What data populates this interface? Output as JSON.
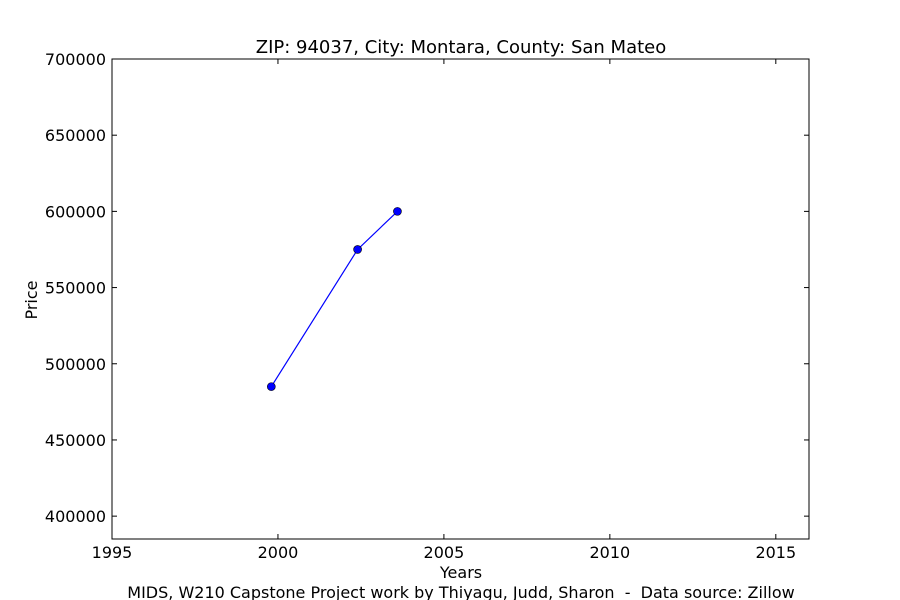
{
  "chart_data": {
    "type": "line",
    "title": "ZIP: 94037, City: Montara, County: San Mateo",
    "xlabel": "Years",
    "ylabel": "Price",
    "caption": "MIDS, W210 Capstone Project work by Thiyagu, Judd, Sharon  -  Data source: Zillow",
    "xlim": [
      1995,
      2016
    ],
    "ylim": [
      385000,
      700000
    ],
    "xticks": [
      1995,
      2000,
      2005,
      2010,
      2015
    ],
    "yticks": [
      400000,
      450000,
      500000,
      550000,
      600000,
      650000,
      700000
    ],
    "grid": false,
    "series": [
      {
        "color": "#0000ff",
        "marker": "circle",
        "x": [
          1999.8,
          2002.4,
          2003.6
        ],
        "y": [
          485000,
          575000,
          600000
        ]
      }
    ]
  }
}
